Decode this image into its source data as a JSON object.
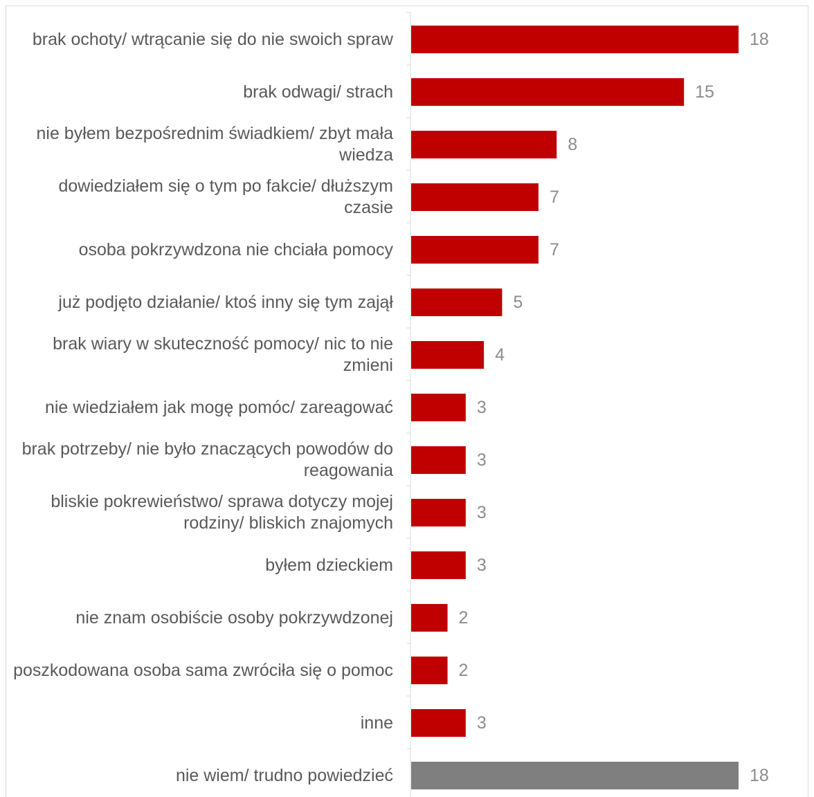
{
  "chart_data": {
    "type": "bar",
    "orientation": "horizontal",
    "categories": [
      "brak ochoty/ wtrącanie się do nie swoich spraw",
      "brak odwagi/ strach",
      "nie byłem bezpośrednim świadkiem/ zbyt mała wiedza",
      "dowiedziałem się o tym po fakcie/ dłuższym czasie",
      "osoba pokrzywdzona nie chciała pomocy",
      "już podjęto działanie/ ktoś inny się tym zajął",
      "brak wiary w skuteczność pomocy/ nic to nie zmieni",
      "nie wiedziałem jak mogę pomóc/ zareagować",
      "brak potrzeby/ nie było znaczących powodów do reagowania",
      "bliskie pokrewieństwo/ sprawa dotyczy mojej rodziny/ bliskich znajomych",
      "byłem dzieckiem",
      "nie znam osobiście osoby pokrzywdzonej",
      "poszkodowana osoba sama zwróciła się o pomoc",
      "inne",
      "nie wiem/ trudno powiedzieć"
    ],
    "values": [
      18,
      15,
      8,
      7,
      7,
      5,
      4,
      3,
      3,
      3,
      3,
      2,
      2,
      3,
      18
    ],
    "bar_colors": [
      "#c00000",
      "#c00000",
      "#c00000",
      "#c00000",
      "#c00000",
      "#c00000",
      "#c00000",
      "#c00000",
      "#c00000",
      "#c00000",
      "#c00000",
      "#c00000",
      "#c00000",
      "#c00000",
      "#7f7f7f"
    ],
    "xlim": [
      0,
      18
    ],
    "grid": false,
    "legend": "none",
    "title": "",
    "xlabel": "",
    "ylabel": ""
  }
}
